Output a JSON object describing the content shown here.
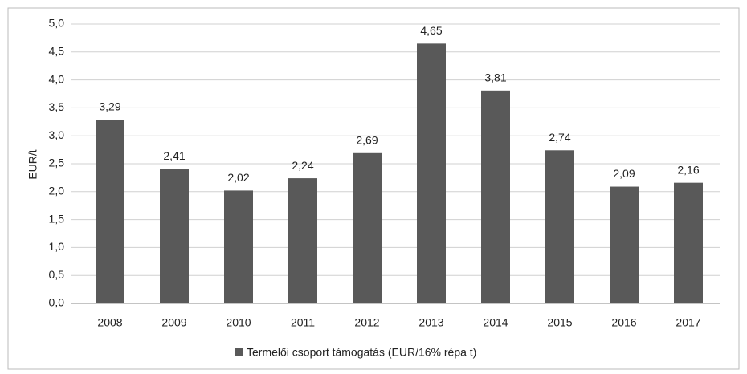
{
  "chart_data": {
    "type": "bar",
    "y_label": "EUR/t",
    "categories": [
      "2008",
      "2009",
      "2010",
      "2011",
      "2012",
      "2013",
      "2014",
      "2015",
      "2016",
      "2017"
    ],
    "series": [
      {
        "name": "Termelői csoport támogatás (EUR/16% répa t)",
        "color": "#595959",
        "values": [
          3.29,
          2.41,
          2.02,
          2.24,
          2.69,
          4.65,
          3.81,
          2.74,
          2.09,
          2.16
        ],
        "value_labels": [
          "3,29",
          "2,41",
          "2,02",
          "2,24",
          "2,69",
          "4,65",
          "3,81",
          "2,74",
          "2,09",
          "2,16"
        ]
      }
    ],
    "ylim": [
      0,
      5
    ],
    "yticks": [
      {
        "value": 0,
        "label": "0,0"
      },
      {
        "value": 0.5,
        "label": "0,5"
      },
      {
        "value": 1,
        "label": "1,0"
      },
      {
        "value": 1.5,
        "label": "1,5"
      },
      {
        "value": 2,
        "label": "2,0"
      },
      {
        "value": 2.5,
        "label": "2,5"
      },
      {
        "value": 3,
        "label": "3,0"
      },
      {
        "value": 3.5,
        "label": "3,5"
      },
      {
        "value": 4,
        "label": "4,0"
      },
      {
        "value": 4.5,
        "label": "4,5"
      },
      {
        "value": 5,
        "label": "5,0"
      }
    ],
    "grid": true,
    "legend": "bottom"
  }
}
